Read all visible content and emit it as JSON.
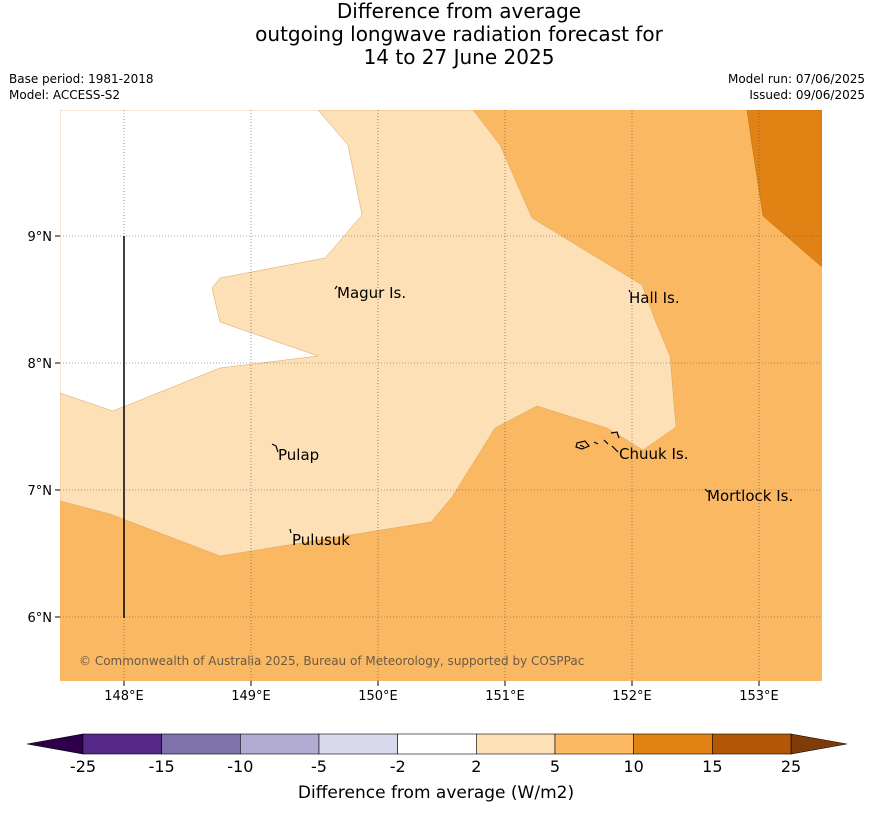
{
  "title": {
    "line1": "Difference from average",
    "line2": "outgoing longwave radiation forecast for",
    "line3": "14 to 27 June 2025"
  },
  "meta_left": {
    "base_period": "Base period: 1981-2018",
    "model": "Model: ACCESS-S2"
  },
  "meta_right": {
    "model_run": "Model run: 07/06/2025",
    "issued": "Issued: 09/06/2025"
  },
  "map": {
    "lon_ticks": [
      "148°E",
      "149°E",
      "150°E",
      "151°E",
      "152°E",
      "153°E"
    ],
    "lat_ticks": [
      "9°N",
      "8°N",
      "7°N",
      "6°N"
    ],
    "places": [
      {
        "name": "Magur Is."
      },
      {
        "name": "Hall Is."
      },
      {
        "name": "Pulap"
      },
      {
        "name": "Chuuk Is."
      },
      {
        "name": "Mortlock Is."
      },
      {
        "name": "Pulusuk"
      }
    ],
    "copyright": "© Commonwealth of Australia 2025, Bureau of Meteorology, supported by COSPPac",
    "fill_colors": {
      "band_2_5": "#fde0b6",
      "band_5_10": "#fbb862",
      "band_10_15": "#e08214",
      "band_m2_2": "#ffffff"
    }
  },
  "colorbar": {
    "title": "Difference from average (W/m2)",
    "labels": [
      "-25",
      "-15",
      "-10",
      "-5",
      "-2",
      "2",
      "5",
      "10",
      "15",
      "25"
    ],
    "colors": [
      "#542788",
      "#8073ac",
      "#b2abd2",
      "#d8daeb",
      "#ffffff",
      "#fee0b6",
      "#fdb863",
      "#e08214",
      "#b35806"
    ],
    "under_color": "#2d004b",
    "over_color": "#7f3b08"
  }
}
